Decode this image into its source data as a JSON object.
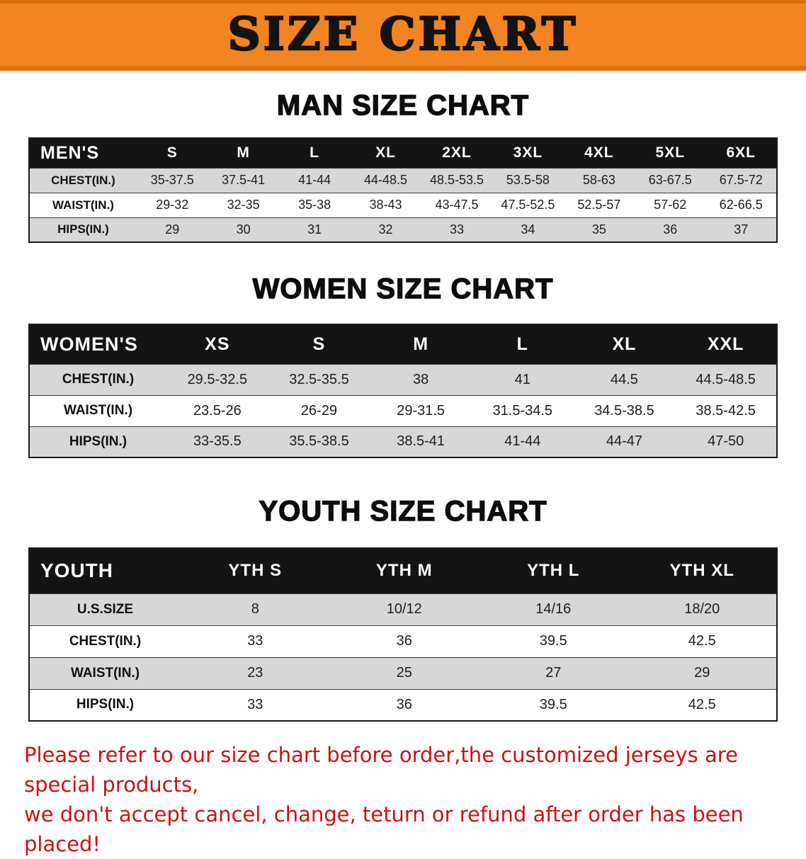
{
  "theme": {
    "banner_bg": "#f28422",
    "banner_border": "#dd7110",
    "banner_text": "#131313",
    "header_bg": "#141414",
    "header_text": "#ffffff",
    "row_stripe": "#d7d7d7",
    "row_white": "#ffffff",
    "border_dark": "#1a1a1a",
    "disclaimer_red": "#cc1111"
  },
  "banner": {
    "title": "SIZE CHART"
  },
  "sections": [
    {
      "heading": "MAN SIZE CHART",
      "table": {
        "label": "MEN'S",
        "columns": [
          "S",
          "M",
          "L",
          "XL",
          "2XL",
          "3XL",
          "4XL",
          "5XL",
          "6XL"
        ],
        "rows": [
          {
            "label": "CHEST(IN.)",
            "values": [
              "35-37.5",
              "37.5-41",
              "41-44",
              "44-48.5",
              "48.5-53.5",
              "53.5-58",
              "58-63",
              "63-67.5",
              "67.5-72"
            ]
          },
          {
            "label": "WAIST(IN.)",
            "values": [
              "29-32",
              "32-35",
              "35-38",
              "38-43",
              "43-47.5",
              "47.5-52.5",
              "52.5-57",
              "57-62",
              "62-66.5"
            ]
          },
          {
            "label": "HIPS(IN.)",
            "values": [
              "29",
              "30",
              "31",
              "32",
              "33",
              "34",
              "35",
              "36",
              "37"
            ]
          }
        ]
      }
    },
    {
      "heading": "WOMEN SIZE CHART",
      "table": {
        "label": "WOMEN'S",
        "columns": [
          "XS",
          "S",
          "M",
          "L",
          "XL",
          "XXL"
        ],
        "rows": [
          {
            "label": "CHEST(IN.)",
            "values": [
              "29.5-32.5",
              "32.5-35.5",
              "38",
              "41",
              "44.5",
              "44.5-48.5"
            ]
          },
          {
            "label": "WAIST(IN.)",
            "values": [
              "23.5-26",
              "26-29",
              "29-31.5",
              "31.5-34.5",
              "34.5-38.5",
              "38.5-42.5"
            ]
          },
          {
            "label": "HIPS(IN.)",
            "values": [
              "33-35.5",
              "35.5-38.5",
              "38.5-41",
              "41-44",
              "44-47",
              "47-50"
            ]
          }
        ]
      }
    },
    {
      "heading": "YOUTH SIZE CHART",
      "table": {
        "label": "YOUTH",
        "columns": [
          "YTH S",
          "YTH M",
          "YTH L",
          "YTH XL"
        ],
        "rows": [
          {
            "label": "U.S.SIZE",
            "values": [
              "8",
              "10/12",
              "14/16",
              "18/20"
            ]
          },
          {
            "label": "CHEST(IN.)",
            "values": [
              "33",
              "36",
              "39.5",
              "42.5"
            ]
          },
          {
            "label": "WAIST(IN.)",
            "values": [
              "23",
              "25",
              "27",
              "29"
            ]
          },
          {
            "label": "HIPS(IN.)",
            "values": [
              "33",
              "36",
              "39.5",
              "42.5"
            ]
          }
        ]
      }
    }
  ],
  "footer": {
    "line1": "Please refer to our size chart before order,the customized jerseys are special products,",
    "line2": "we don't accept cancel, change, teturn or refund after order has been placed!"
  }
}
